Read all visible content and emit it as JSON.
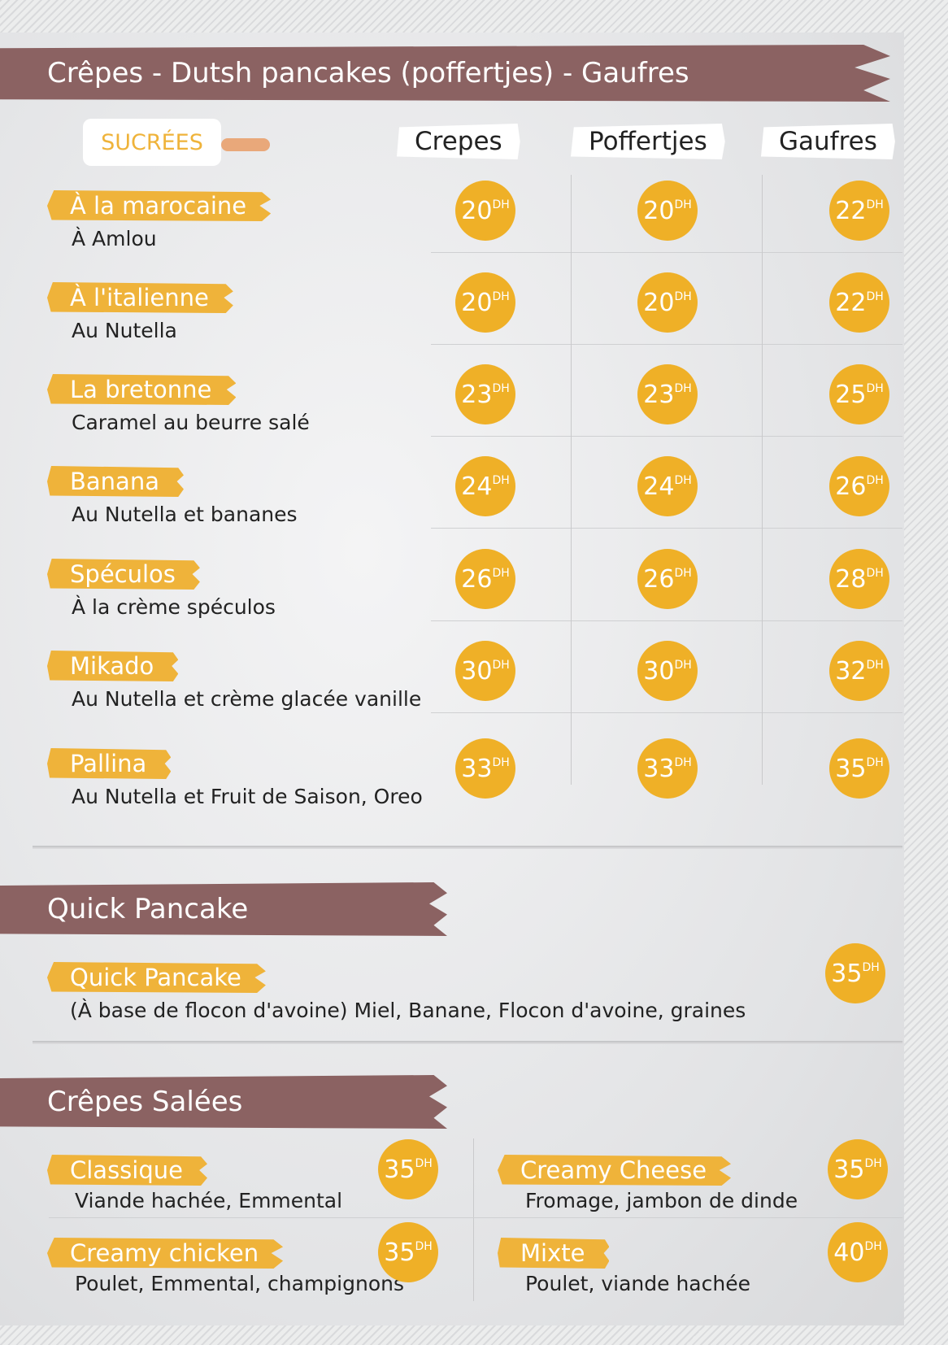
{
  "header": {
    "title": "Crêpes - Dutsh pancakes (poffertjes) - Gaufres"
  },
  "sucrees": {
    "label": "SUCRÉES",
    "icon": "pointing-hand-icon",
    "columns": [
      "Crepes",
      "Poffertjes",
      "Gaufres"
    ],
    "items": [
      {
        "name": "À la marocaine",
        "desc": "À Amlou",
        "prices": [
          "20",
          "20",
          "22"
        ]
      },
      {
        "name": "À l'italienne",
        "desc": "Au Nutella",
        "prices": [
          "20",
          "20",
          "22"
        ]
      },
      {
        "name": "La bretonne",
        "desc": "Caramel au beurre salé",
        "prices": [
          "23",
          "23",
          "25"
        ]
      },
      {
        "name": "Banana",
        "desc": "Au Nutella et bananes",
        "prices": [
          "24",
          "24",
          "26"
        ]
      },
      {
        "name": "Spéculos",
        "desc": "À la crème spéculos",
        "prices": [
          "26",
          "26",
          "28"
        ]
      },
      {
        "name": "Mikado",
        "desc": "Au Nutella et crème glacée vanille",
        "prices": [
          "30",
          "30",
          "32"
        ]
      },
      {
        "name": "Pallina",
        "desc": "Au Nutella et Fruit de Saison, Oreo",
        "prices": [
          "33",
          "33",
          "35"
        ]
      }
    ]
  },
  "currency": "DH",
  "quick": {
    "title": "Quick Pancake",
    "item": {
      "name": "Quick Pancake",
      "desc": "(À base de flocon d'avoine) Miel, Banane, Flocon d'avoine, graines",
      "price": "35"
    }
  },
  "salees": {
    "title": "Crêpes Salées",
    "items": [
      {
        "name": "Classique",
        "desc": "Viande hachée, Emmental",
        "price": "35"
      },
      {
        "name": "Creamy Cheese",
        "desc": "Fromage, jambon de dinde",
        "price": "35"
      },
      {
        "name": "Creamy chicken",
        "desc": "Poulet, Emmental, champignons",
        "price": "35"
      },
      {
        "name": "Mixte",
        "desc": "Poulet, viande hachée",
        "price": "40"
      }
    ]
  },
  "colors": {
    "band": "#8b6262",
    "accent": "#efb027"
  }
}
